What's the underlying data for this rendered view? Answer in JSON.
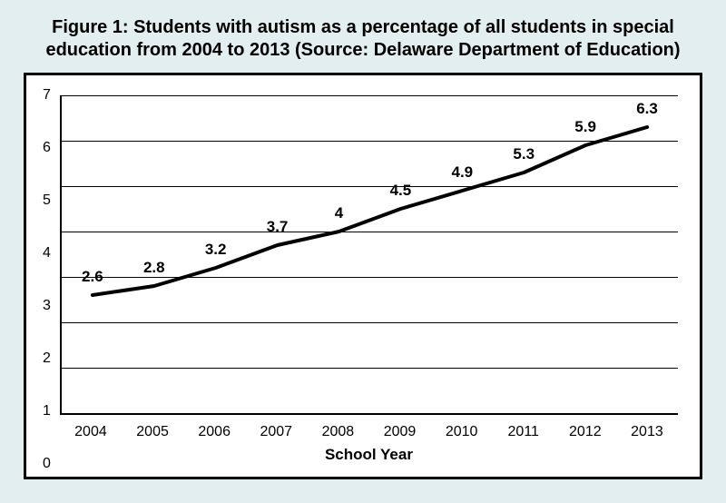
{
  "title": "Figure 1: Students with autism as a percentage of all students in special education from 2004 to 2013 (Source: Delaware Department of Education)",
  "title_fontsize": 20,
  "chart": {
    "type": "line",
    "categories": [
      "2004",
      "2005",
      "2006",
      "2007",
      "2008",
      "2009",
      "2010",
      "2011",
      "2012",
      "2013"
    ],
    "values": [
      2.6,
      2.8,
      3.2,
      3.7,
      4.0,
      4.5,
      4.9,
      5.3,
      5.9,
      6.3
    ],
    "value_labels": [
      "2.6",
      "2.8",
      "3.2",
      "3.7",
      "4",
      "4.5",
      "4.9",
      "5.3",
      "5.9",
      "6.3"
    ],
    "xlabel": "School Year",
    "ylim": [
      0,
      7
    ],
    "yticks": [
      0,
      1,
      2,
      3,
      4,
      5,
      6,
      7
    ],
    "line_color": "#000000",
    "line_width": 4,
    "grid_color": "#000000",
    "background_color": "#ffffff",
    "frame_border_color": "#000000",
    "page_background": "#e3eef1",
    "tick_fontsize": 16,
    "data_label_fontsize": 17,
    "xlabel_fontsize": 17
  }
}
